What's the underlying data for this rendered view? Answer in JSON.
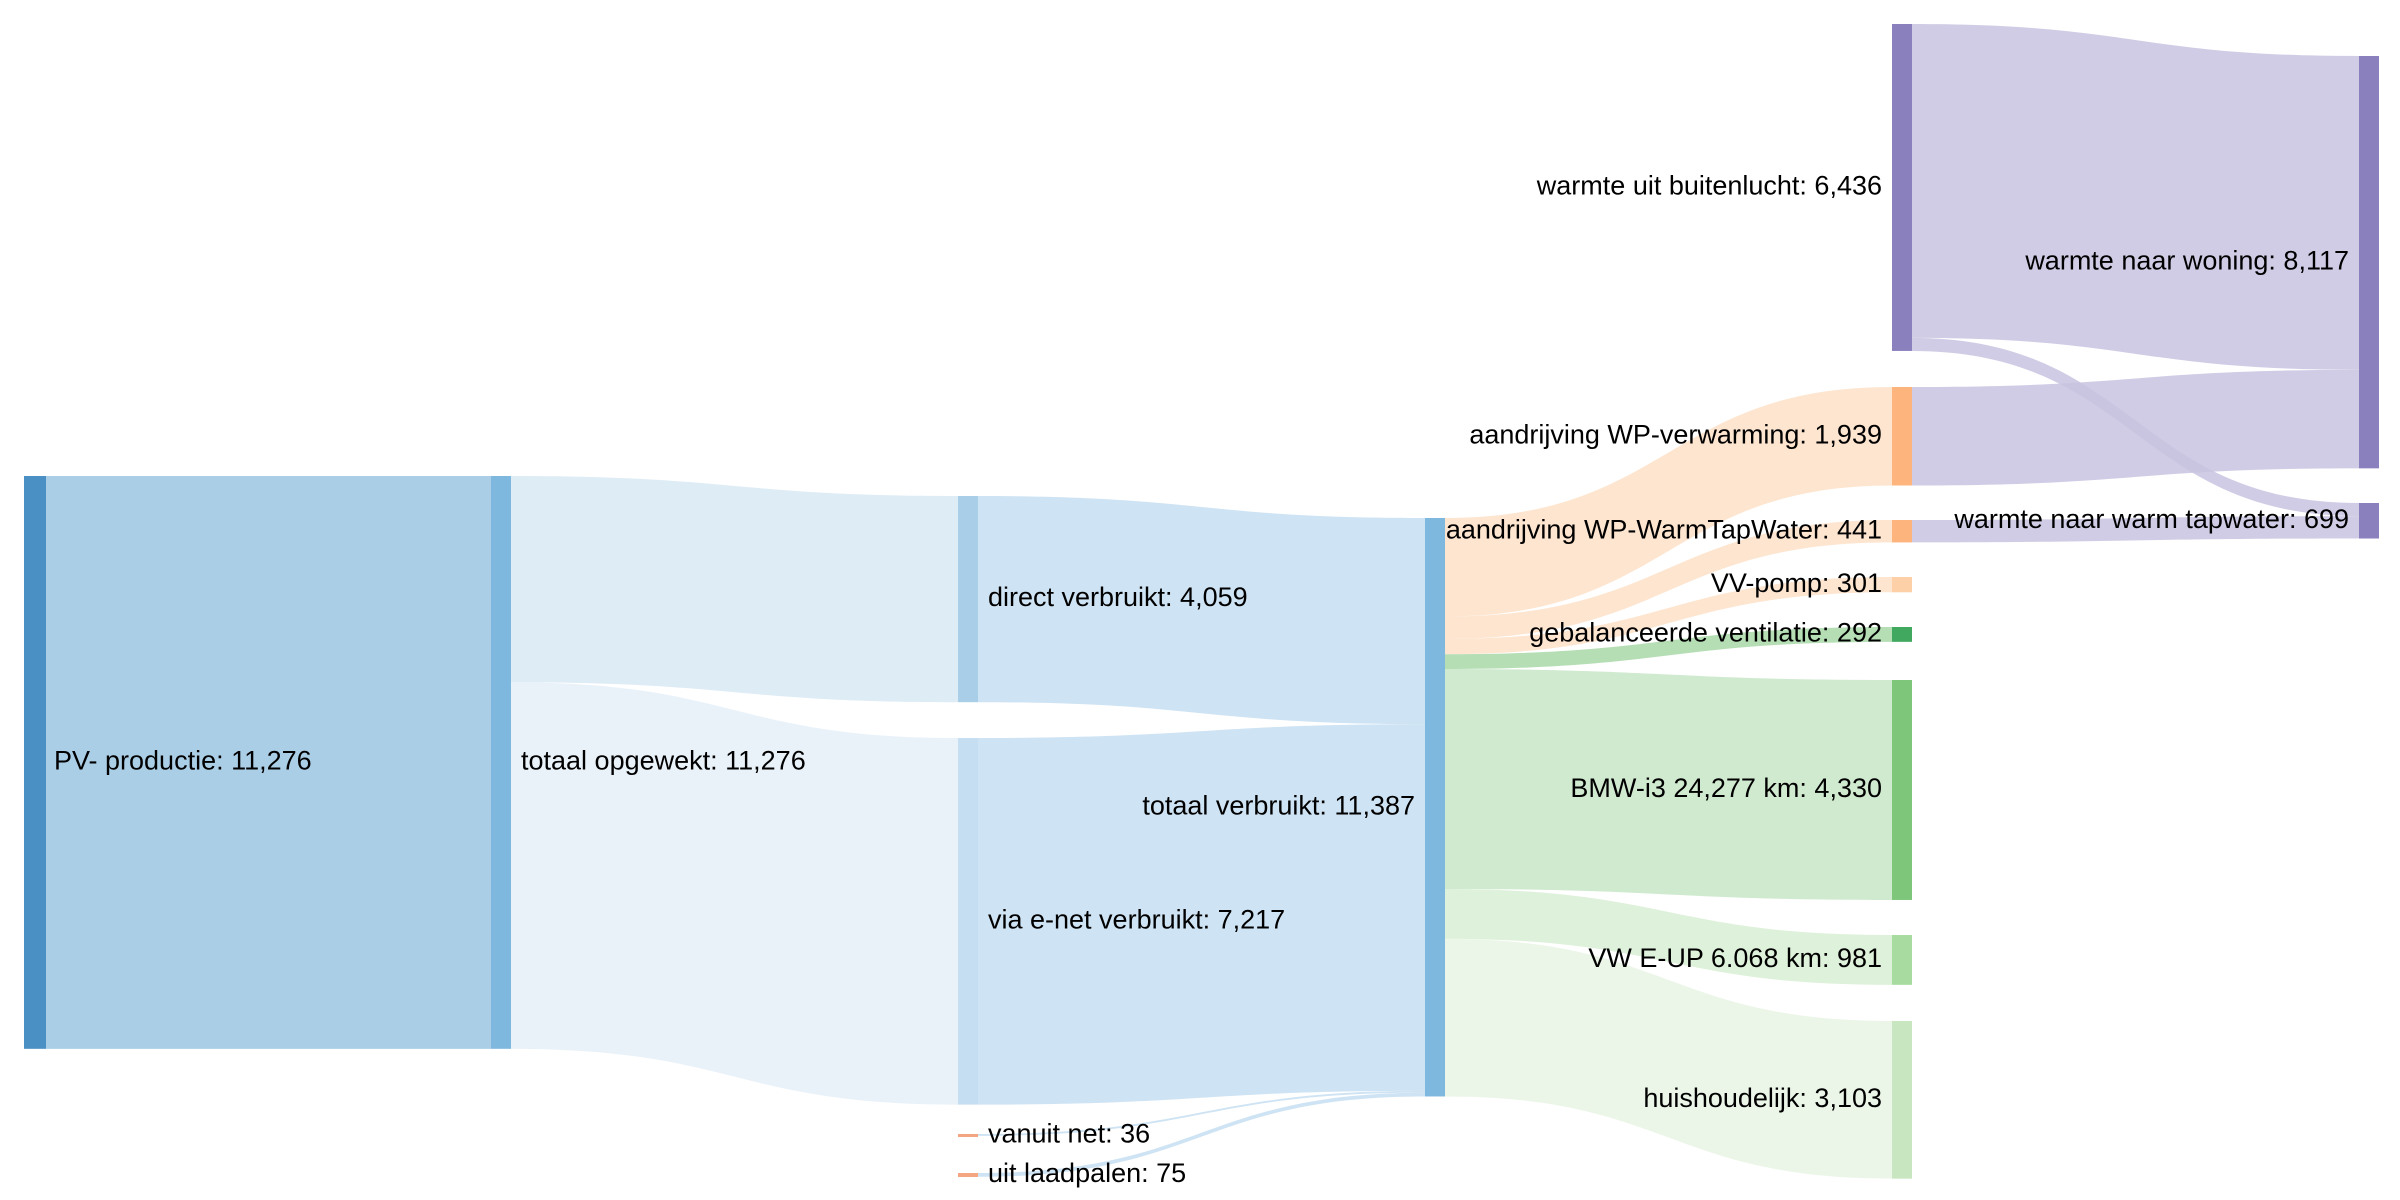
{
  "chart_data": {
    "type": "sankey",
    "value_unit": "",
    "nodes": [
      {
        "id": "pv",
        "label": "PV- productie: 11,276",
        "value": 11276,
        "color": "#4a90c4"
      },
      {
        "id": "totaal_opgewekt",
        "label": "totaal opgewekt: 11,276",
        "value": 11276,
        "color": "#7fb8de"
      },
      {
        "id": "direct",
        "label": "direct verbruikt: 4,059",
        "value": 4059,
        "color": "#a9cfe8"
      },
      {
        "id": "via_enet",
        "label": "via e-net verbruikt: 7,217",
        "value": 7217,
        "color": "#c6def1"
      },
      {
        "id": "vanuit_net",
        "label": "vanuit net: 36",
        "value": 36,
        "color": "#f4a582"
      },
      {
        "id": "uit_laadpalen",
        "label": "uit laadpalen: 75",
        "value": 75,
        "color": "#f4a582"
      },
      {
        "id": "totaal_verbruikt",
        "label": "totaal verbruikt: 11,387",
        "value": 11387,
        "color": "#7fb8de"
      },
      {
        "id": "wp_verwarming",
        "label": "aandrijving WP-verwarming: 1,939",
        "value": 1939,
        "color": "#fdb47d"
      },
      {
        "id": "wp_tapwater",
        "label": "aandrijving WP-WarmTapWater: 441",
        "value": 441,
        "color": "#fdb47d"
      },
      {
        "id": "vv_pomp",
        "label": "VV-pomp: 301",
        "value": 301,
        "color": "#fdd0a8"
      },
      {
        "id": "ventilatie",
        "label": "gebalanceerde ventilatie: 292",
        "value": 292,
        "color": "#41a85f"
      },
      {
        "id": "bmw",
        "label": "BMW-i3 24,277 km: 4,330",
        "value": 4330,
        "color": "#7dc67a"
      },
      {
        "id": "vw",
        "label": "VW E-UP 6.068 km: 981",
        "value": 981,
        "color": "#a8dba0"
      },
      {
        "id": "huishoudelijk",
        "label": "huishoudelijk: 3,103",
        "value": 3103,
        "color": "#c8e6c0"
      },
      {
        "id": "buitenlucht",
        "label": "warmte uit buitenlucht: 6,436",
        "value": 6436,
        "color": "#8b80be"
      },
      {
        "id": "woning",
        "label": "warmte naar woning: 8,117",
        "value": 8117,
        "color": "#8b80be"
      },
      {
        "id": "tapwater",
        "label": "warmte naar warm tapwater: 699",
        "value": 699,
        "color": "#8b80be"
      }
    ],
    "links": [
      {
        "source": "pv",
        "target": "totaal_opgewekt",
        "value": 11276,
        "color": "#9cc6e3"
      },
      {
        "source": "totaal_opgewekt",
        "target": "direct",
        "value": 4059,
        "color": "#d8e9f4"
      },
      {
        "source": "totaal_opgewekt",
        "target": "via_enet",
        "value": 7217,
        "color": "#e6f0f8"
      },
      {
        "source": "direct",
        "target": "totaal_verbruikt",
        "value": 4059,
        "color": "#c6def1"
      },
      {
        "source": "via_enet",
        "target": "totaal_verbruikt",
        "value": 7217,
        "color": "#c6def1"
      },
      {
        "source": "vanuit_net",
        "target": "totaal_verbruikt",
        "value": 36,
        "color": "#c6def1"
      },
      {
        "source": "uit_laadpalen",
        "target": "totaal_verbruikt",
        "value": 75,
        "color": "#c6def1"
      },
      {
        "source": "totaal_verbruikt",
        "target": "wp_verwarming",
        "value": 1939,
        "color": "#fde0c8"
      },
      {
        "source": "totaal_verbruikt",
        "target": "wp_tapwater",
        "value": 441,
        "color": "#fde0c8"
      },
      {
        "source": "totaal_verbruikt",
        "target": "vv_pomp",
        "value": 301,
        "color": "#fde0c8"
      },
      {
        "source": "totaal_verbruikt",
        "target": "ventilatie",
        "value": 292,
        "color": "#a8d8a8"
      },
      {
        "source": "totaal_verbruikt",
        "target": "bmw",
        "value": 4330,
        "color": "#c8e6c8"
      },
      {
        "source": "totaal_verbruikt",
        "target": "vw",
        "value": 981,
        "color": "#d8eed4"
      },
      {
        "source": "totaal_verbruikt",
        "target": "huishoudelijk",
        "value": 3103,
        "color": "#e8f4e4"
      },
      {
        "source": "buitenlucht",
        "target": "woning",
        "value": 6178,
        "color": "#c8c3e0"
      },
      {
        "source": "buitenlucht",
        "target": "tapwater",
        "value": 258,
        "color": "#c8c3e0"
      },
      {
        "source": "wp_verwarming",
        "target": "woning",
        "value": 1939,
        "color": "#c8c3e0"
      },
      {
        "source": "wp_tapwater",
        "target": "tapwater",
        "value": 441,
        "color": "#c8c3e0"
      }
    ]
  }
}
